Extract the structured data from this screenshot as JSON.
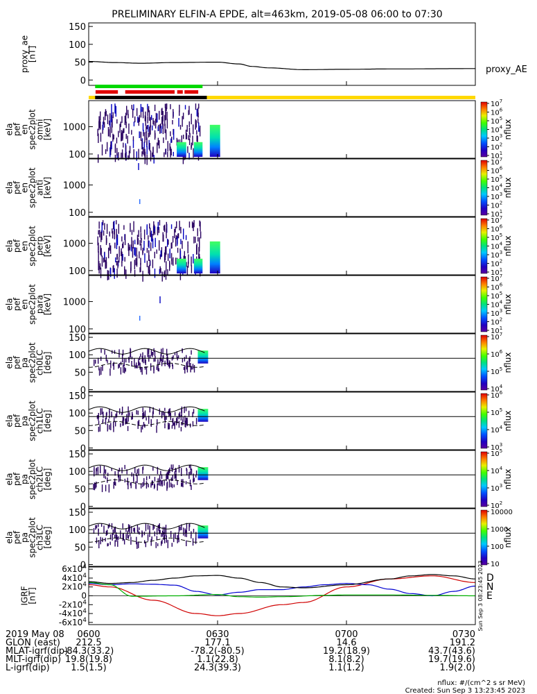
{
  "title": "PRELIMINARY ELFIN-A EPDE, alt=463km, 2019-05-08 06:00 to 07:30",
  "colors": {
    "green_bar": "#00d800",
    "red_bar": "#e00000",
    "yellow_bar": "#ffd800",
    "black_bar": "#000000",
    "grf_d": "#d00000",
    "grf_n": "#0000d0",
    "grf_e": "#00b000"
  },
  "chart_data": [
    {
      "type": "line",
      "ylabel": [
        "proxy_ae",
        "[nT]"
      ],
      "yticks": [
        0,
        50,
        100,
        150
      ],
      "ylim": [
        -15,
        160
      ],
      "series": [
        {
          "name": "proxy_AE",
          "t": [
            0,
            6,
            12,
            20,
            30,
            35,
            38,
            42,
            50,
            60,
            70,
            90
          ],
          "values": [
            52,
            49,
            47,
            49,
            50,
            45,
            38,
            34,
            29,
            30,
            31,
            32
          ]
        }
      ]
    },
    {
      "type": "heatmap",
      "ylabel": [
        "ela",
        "pef",
        "en",
        "spec2plot",
        "omni",
        "[keV]"
      ],
      "yticks": [
        "100",
        "1000"
      ],
      "cbar_ticks": [
        "10^1",
        "10^2",
        "10^3",
        "10^4",
        "10^5",
        "10^6",
        "10^7"
      ],
      "cbar_label": "nflux"
    },
    {
      "type": "heatmap",
      "ylabel": [
        "ela",
        "pef",
        "en",
        "spec2plot",
        "anti",
        "[keV]"
      ],
      "yticks": [
        "100",
        "1000"
      ],
      "cbar_ticks": [
        "10^1",
        "10^2",
        "10^3",
        "10^4",
        "10^5",
        "10^6",
        "10^7"
      ],
      "cbar_label": "nflux"
    },
    {
      "type": "heatmap",
      "ylabel": [
        "ela",
        "pef",
        "en",
        "spec2plot",
        "perp",
        "[keV]"
      ],
      "yticks": [
        "100",
        "1000"
      ],
      "cbar_ticks": [
        "10^1",
        "10^2",
        "10^3",
        "10^4",
        "10^5",
        "10^6",
        "10^7"
      ],
      "cbar_label": "nflux"
    },
    {
      "type": "heatmap",
      "ylabel": [
        "ela",
        "pef",
        "en",
        "spec2plot",
        "para",
        "[keV]"
      ],
      "yticks": [
        "100",
        "1000"
      ],
      "cbar_ticks": [
        "10^1",
        "10^2",
        "10^3",
        "10^4",
        "10^5",
        "10^6",
        "10^7"
      ],
      "cbar_label": "nflux"
    },
    {
      "type": "heatmap",
      "ylabel": [
        "ela",
        "pef",
        "pa",
        "spec2plot",
        "ch0LC",
        "[deg]"
      ],
      "yticks": [
        "0",
        "50",
        "100",
        "150"
      ],
      "cbar_ticks": [
        "10^4",
        "10^5",
        "10^6",
        "10^7"
      ],
      "cbar_label": "nflux"
    },
    {
      "type": "heatmap",
      "ylabel": [
        "ela",
        "pef",
        "pa",
        "spec2plot",
        "ch1LC",
        "[deg]"
      ],
      "yticks": [
        "0",
        "50",
        "100",
        "150"
      ],
      "cbar_ticks": [
        "10^3",
        "10^4",
        "10^5",
        "10^6"
      ],
      "cbar_label": "nflux"
    },
    {
      "type": "heatmap",
      "ylabel": [
        "ela",
        "pef",
        "pa",
        "spec2plot",
        "ch2LC",
        "[deg]"
      ],
      "yticks": [
        "0",
        "50",
        "100",
        "150"
      ],
      "cbar_ticks": [
        "10^2",
        "10^3",
        "10^4",
        "10^5"
      ],
      "cbar_label": "nflux"
    },
    {
      "type": "heatmap",
      "ylabel": [
        "ela",
        "pef",
        "pa",
        "spec2plot",
        "ch3LC",
        "[deg]"
      ],
      "yticks": [
        "0",
        "50",
        "100",
        "150"
      ],
      "cbar_ticks": [
        "10",
        "100",
        "1000",
        "10000"
      ],
      "cbar_label": "nflux"
    },
    {
      "type": "line",
      "ylabel": [
        "IGRF",
        "[nT]"
      ],
      "yticks": [
        "-6x10^4",
        "-4x10^4",
        "-2x10^4",
        "0",
        "2x10^4",
        "4x10^4",
        "6x10^4"
      ],
      "ylim": [
        -65000,
        65000
      ],
      "series": [
        {
          "name": "D",
          "t": [
            0,
            5,
            15,
            25,
            30,
            35,
            45,
            50,
            60,
            70,
            80,
            90
          ],
          "values": [
            25000,
            20000,
            -10000,
            -40000,
            -45000,
            -40000,
            -20000,
            -15000,
            20000,
            38000,
            45000,
            30000
          ]
        },
        {
          "name": "N",
          "t": [
            0,
            5,
            10,
            15,
            20,
            25,
            30,
            35,
            40,
            45,
            50,
            55,
            60,
            65,
            70,
            75,
            80,
            85,
            90
          ],
          "values": [
            28000,
            25000,
            27000,
            26000,
            24000,
            10000,
            2000,
            8000,
            14000,
            14000,
            20000,
            25000,
            28000,
            25000,
            15000,
            5000,
            0,
            10000,
            22000
          ]
        },
        {
          "name": "E",
          "t": [
            0,
            5,
            10,
            20,
            30,
            35,
            40,
            45,
            55,
            60,
            70,
            80,
            90
          ],
          "values": [
            30000,
            25000,
            -1000,
            0,
            3000,
            -2000,
            -3000,
            -2000,
            1000,
            2000,
            2000,
            1000,
            0
          ]
        },
        {
          "name": "",
          "t": [
            0,
            5,
            10,
            15,
            20,
            25,
            30,
            35,
            40,
            45,
            50,
            60,
            70,
            75,
            80,
            85,
            90
          ],
          "values": [
            32000,
            28000,
            30000,
            35000,
            40000,
            45000,
            46000,
            40000,
            30000,
            20000,
            18000,
            25000,
            38000,
            45000,
            48000,
            45000,
            38000
          ]
        }
      ]
    }
  ],
  "xaxis": {
    "rows": [
      {
        "label": "2019 May 08",
        "values": [
          "0600",
          "0630",
          "0700",
          "0730"
        ]
      },
      {
        "label": "GLON (east)",
        "values": [
          "212.5",
          "177.1",
          "14.6",
          "191.2"
        ]
      },
      {
        "label": "MLAT-igrf(dip)",
        "values": [
          "-84.3(33.2)",
          "-78.2(-80.5)",
          "19.2(18.9)",
          "43.7(43.6)"
        ]
      },
      {
        "label": "MLT-igrf(dip)",
        "values": [
          "19.8(19.8)",
          "1.1(22.8)",
          "8.1(8.2)",
          "19.7(19.6)"
        ]
      },
      {
        "label": "L-igrf(dip)",
        "values": [
          "1.5(1.5)",
          "24.3(39.3)",
          "1.1(1.2)",
          "1.9(2.0)"
        ]
      }
    ]
  },
  "footer": {
    "units": "nflux: #/(cm^2 s sr MeV)",
    "created": "Created: Sun Sep  3 13:23:45 2023",
    "side_stamp": "Sun Sep  3 08:23:45 2023"
  }
}
